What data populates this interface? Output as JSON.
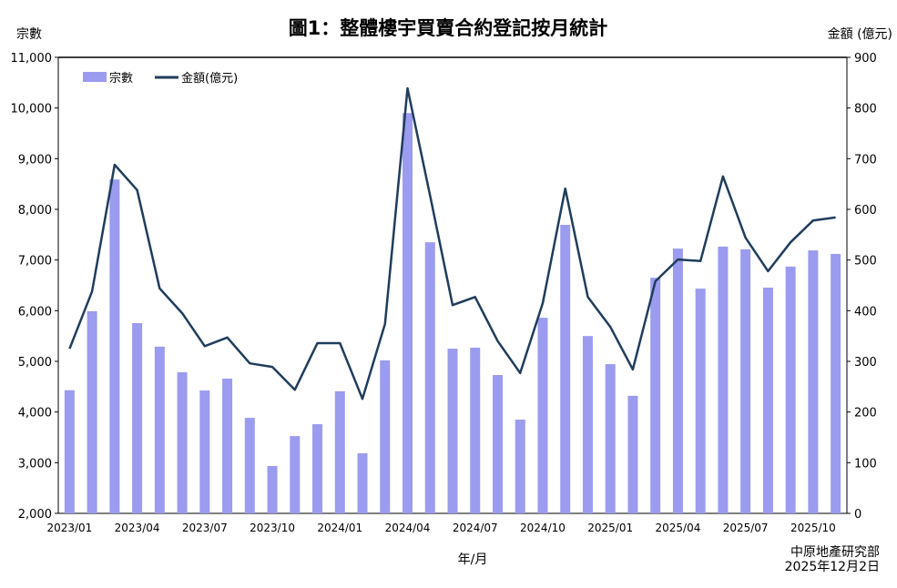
{
  "chart_data": {
    "type": "bar+line",
    "title": "圖1：整體樓宇買賣合約登記按月統計",
    "xlabel": "年/月",
    "ylabel_left": "宗數",
    "ylabel_right": "金額 (億元)",
    "source": "中原地產研究部",
    "date": "2025年12月2日",
    "ylim_left": [
      2000,
      11000
    ],
    "ylim_right": [
      0,
      900
    ],
    "yticks_left": [
      "2,000",
      "3,000",
      "4,000",
      "5,000",
      "6,000",
      "7,000",
      "8,000",
      "9,000",
      "10,000",
      "11,000"
    ],
    "yticks_right": [
      "0",
      "100",
      "200",
      "300",
      "400",
      "500",
      "600",
      "700",
      "800",
      "900"
    ],
    "legend_position": "top-left",
    "categories": [
      "2023/01",
      "2023/02",
      "2023/03",
      "2023/04",
      "2023/05",
      "2023/06",
      "2023/07",
      "2023/08",
      "2023/09",
      "2023/10",
      "2023/11",
      "2023/12",
      "2024/01",
      "2024/02",
      "2024/03",
      "2024/04",
      "2024/05",
      "2024/06",
      "2024/07",
      "2024/08",
      "2024/09",
      "2024/10",
      "2024/11",
      "2024/12",
      "2025/01",
      "2025/02",
      "2025/03",
      "2025/04",
      "2025/05",
      "2025/06",
      "2025/07",
      "2025/08",
      "2025/09",
      "2025/10",
      "2025/11"
    ],
    "xtick_labels": [
      "2023/01",
      "2023/04",
      "2023/07",
      "2023/10",
      "2024/01",
      "2024/04",
      "2024/07",
      "2024/10",
      "2025/01",
      "2025/04",
      "2025/07",
      "2025/10"
    ],
    "series": [
      {
        "name": "宗數",
        "type": "bar",
        "axis": "left",
        "color": "#9b9bef",
        "values": [
          4430,
          5990,
          8590,
          5755,
          5290,
          4785,
          4425,
          4660,
          3885,
          2935,
          3525,
          3760,
          4410,
          3185,
          5020,
          9900,
          7350,
          5250,
          5270,
          4730,
          3850,
          5860,
          7695,
          5500,
          4945,
          4320,
          6650,
          7225,
          6435,
          7265,
          7210,
          6455,
          6870,
          7190,
          7120
        ]
      },
      {
        "name": "金額(億元)",
        "type": "line",
        "axis": "right",
        "color": "#1f3d5c",
        "values": [
          325,
          438,
          688,
          638,
          444,
          395,
          330,
          347,
          296,
          289,
          244,
          336,
          336,
          226,
          374,
          839,
          627,
          411,
          427,
          340,
          277,
          415,
          641,
          427,
          368,
          284,
          458,
          501,
          498,
          665,
          544,
          478,
          535,
          578,
          584
        ]
      }
    ]
  }
}
